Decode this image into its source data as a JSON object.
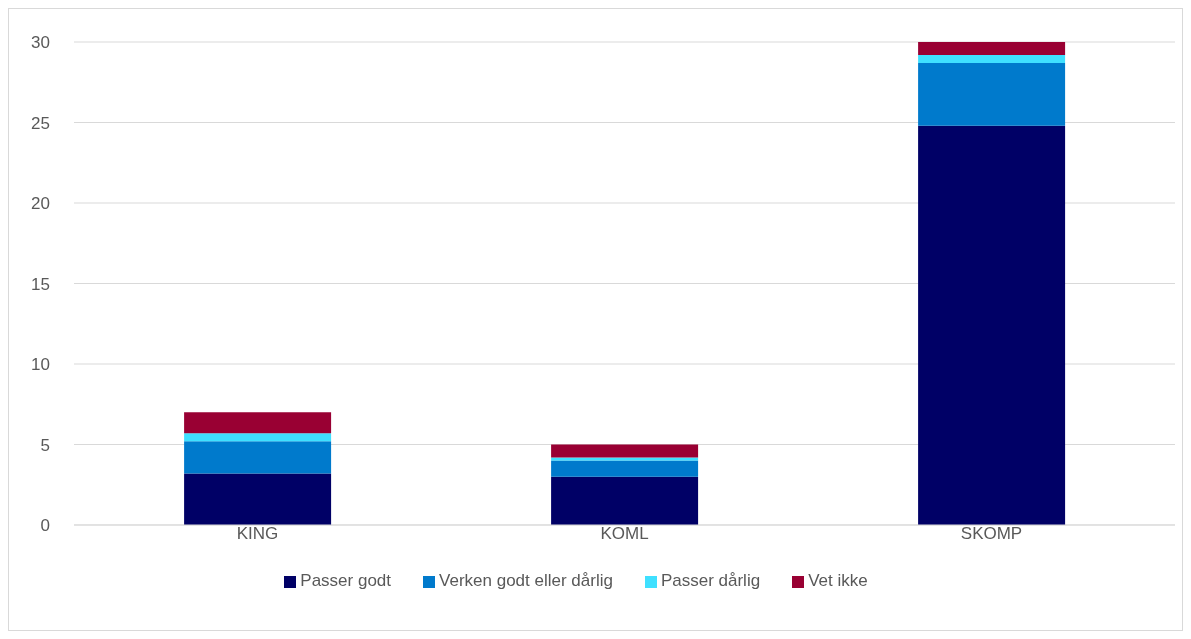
{
  "chart_data": {
    "type": "bar",
    "stacked": true,
    "categories": [
      "KING",
      "KOML",
      "SKOMP"
    ],
    "series": [
      {
        "name": "Passer godt",
        "color": "#000066",
        "values": [
          3.2,
          3.0,
          24.8
        ]
      },
      {
        "name": "Verken godt eller dårlig",
        "color": "#007acc",
        "values": [
          2.0,
          1.0,
          3.9
        ]
      },
      {
        "name": "Passer dårlig",
        "color": "#3fe0ff",
        "values": [
          0.5,
          0.2,
          0.5
        ]
      },
      {
        "name": "Vet ikke",
        "color": "#990033",
        "values": [
          1.3,
          0.8,
          0.8
        ]
      }
    ],
    "ylim": [
      0,
      30
    ],
    "yticks": [
      0,
      5,
      10,
      15,
      20,
      25,
      30
    ],
    "grid": "y",
    "legend": "bottom"
  }
}
